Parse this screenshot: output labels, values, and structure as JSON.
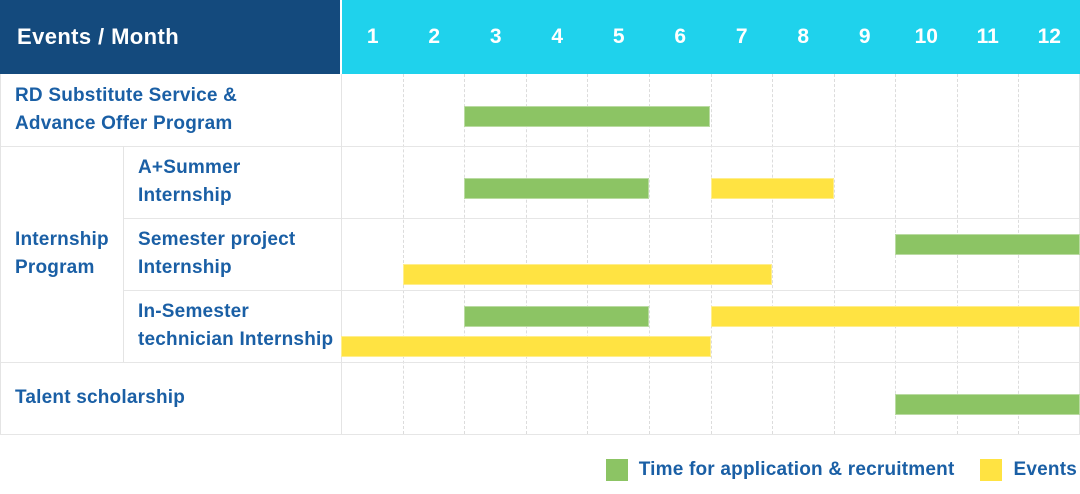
{
  "table": {
    "corner_label": "Events / Month",
    "months": [
      "1",
      "2",
      "3",
      "4",
      "5",
      "6",
      "7",
      "8",
      "9",
      "10",
      "11",
      "12"
    ],
    "group": {
      "name": "internship-program",
      "label_lines": [
        "Internship",
        "Program"
      ]
    },
    "rows": [
      {
        "name": "rd-substitute-advance-offer",
        "group": false,
        "label_lines": [
          "RD Substitute Service &",
          "Advance Offer Program"
        ],
        "bars": [
          {
            "type": "recruitment",
            "lane": "single",
            "start": 3,
            "end": 7
          }
        ]
      },
      {
        "name": "a-plus-summer-internship",
        "group": true,
        "label_lines": [
          "A+Summer",
          "Internship"
        ],
        "bars": [
          {
            "type": "recruitment",
            "lane": "single",
            "start": 3,
            "end": 6
          },
          {
            "type": "events",
            "lane": "single",
            "start": 7,
            "end": 9
          }
        ]
      },
      {
        "name": "semester-project-internship",
        "group": true,
        "label_lines": [
          "Semester project",
          "Internship"
        ],
        "bars": [
          {
            "type": "recruitment",
            "lane": "top",
            "start": 10,
            "end": 13
          },
          {
            "type": "events",
            "lane": "bottom",
            "start": 2,
            "end": 8
          }
        ]
      },
      {
        "name": "in-semester-technician-internship",
        "group": true,
        "label_lines": [
          "In-Semester",
          "technician Internship"
        ],
        "bars": [
          {
            "type": "recruitment",
            "lane": "top",
            "start": 3,
            "end": 6
          },
          {
            "type": "events",
            "lane": "top",
            "start": 7,
            "end": 13
          },
          {
            "type": "events",
            "lane": "bottom",
            "start": 1,
            "end": 7
          }
        ]
      },
      {
        "name": "talent-scholarship",
        "group": false,
        "label_lines": [
          "Talent scholarship"
        ],
        "bars": [
          {
            "type": "recruitment",
            "lane": "single",
            "start": 10,
            "end": 13
          }
        ]
      }
    ]
  },
  "legend": [
    {
      "type": "recruitment",
      "label": "Time for application & recruitment"
    },
    {
      "type": "events",
      "label": "Events"
    }
  ],
  "colors": {
    "header_bg": "#144a7d",
    "months_bg": "#1fd2ec",
    "header_text": "#ffffff",
    "text_blue": "#1a5fa5",
    "recruitment": "#8cc464",
    "events": "#ffe342",
    "grid_line": "#e4e4e4"
  },
  "chart_data": {
    "type": "bar",
    "subtype": "gantt",
    "title": "Events / Month",
    "xlabel": "Month",
    "x_ticks": [
      1,
      2,
      3,
      4,
      5,
      6,
      7,
      8,
      9,
      10,
      11,
      12
    ],
    "xlim": [
      1,
      13
    ],
    "grid": "dashed-vertical-month-lines",
    "legend_position": "bottom-right",
    "legend": [
      {
        "name": "Time for application & recruitment",
        "color": "#8cc464"
      },
      {
        "name": "Events",
        "color": "#ffe342"
      }
    ],
    "rows": [
      {
        "label": "RD Substitute Service & Advance Offer Program",
        "group": null,
        "spans": [
          {
            "series": "Time for application & recruitment",
            "start_month": 3,
            "end_month": 6
          }
        ]
      },
      {
        "label": "A+Summer Internship",
        "group": "Internship Program",
        "spans": [
          {
            "series": "Time for application & recruitment",
            "start_month": 3,
            "end_month": 5
          },
          {
            "series": "Events",
            "start_month": 7,
            "end_month": 8
          }
        ]
      },
      {
        "label": "Semester project Internship",
        "group": "Internship Program",
        "spans": [
          {
            "series": "Time for application & recruitment",
            "start_month": 10,
            "end_month": 12
          },
          {
            "series": "Events",
            "start_month": 2,
            "end_month": 7
          }
        ]
      },
      {
        "label": "In-Semester technician Internship",
        "group": "Internship Program",
        "spans": [
          {
            "series": "Time for application & recruitment",
            "start_month": 3,
            "end_month": 5
          },
          {
            "series": "Events",
            "start_month": 7,
            "end_month": 12
          },
          {
            "series": "Events",
            "start_month": 1,
            "end_month": 6
          }
        ]
      },
      {
        "label": "Talent scholarship",
        "group": null,
        "spans": [
          {
            "series": "Time for application & recruitment",
            "start_month": 10,
            "end_month": 12
          }
        ]
      }
    ]
  }
}
